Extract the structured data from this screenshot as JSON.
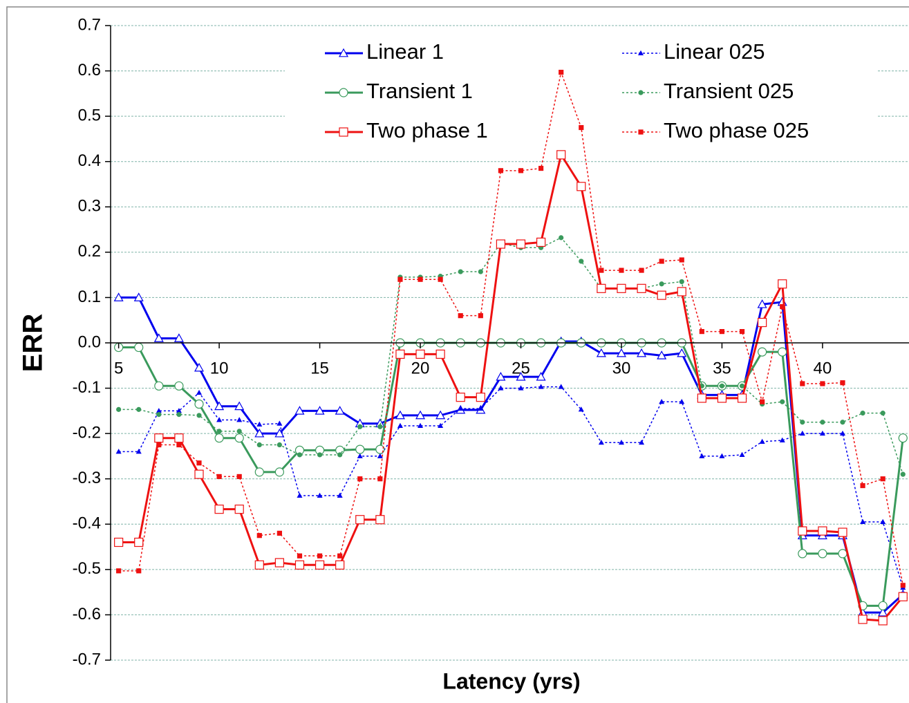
{
  "chart_data": {
    "type": "line",
    "ylabel": "ERR",
    "xlabel": "Latency (yrs)",
    "x": [
      5,
      6,
      7,
      8,
      9,
      10,
      11,
      12,
      13,
      14,
      15,
      16,
      17,
      18,
      19,
      20,
      21,
      22,
      23,
      24,
      25,
      26,
      27,
      28,
      29,
      30,
      31,
      32,
      33,
      34,
      35,
      36,
      37,
      38,
      39,
      40,
      41,
      42,
      43,
      44
    ],
    "xlim": [
      4.6,
      44.3
    ],
    "xticks": [
      5,
      10,
      15,
      20,
      25,
      30,
      35,
      40
    ],
    "ylim": [
      -0.7,
      0.7
    ],
    "yticks": [
      0.7,
      0.6,
      0.5,
      0.4,
      0.3,
      0.2,
      0.1,
      {
        "value": 0,
        "label": "0.0"
      },
      -0.1,
      -0.2,
      -0.3,
      -0.4,
      -0.5,
      -0.6,
      -0.7
    ],
    "grid": true,
    "series": [
      {
        "name": "Linear 1",
        "color": "#0000ee",
        "style": "solid",
        "marker": "triangle",
        "values": [
          0.1,
          0.1,
          0.01,
          0.01,
          -0.055,
          -0.14,
          -0.14,
          -0.2,
          -0.2,
          -0.15,
          -0.15,
          -0.15,
          -0.178,
          -0.178,
          -0.16,
          -0.16,
          -0.16,
          -0.148,
          -0.148,
          -0.075,
          -0.075,
          -0.075,
          0.003,
          0.003,
          -0.023,
          -0.023,
          -0.023,
          -0.028,
          -0.023,
          -0.115,
          -0.115,
          -0.115,
          0.085,
          0.09,
          -0.425,
          -0.425,
          -0.425,
          -0.595,
          -0.595,
          -0.555
        ]
      },
      {
        "name": "Linear 025",
        "color": "#0000ee",
        "style": "dotted",
        "marker": "triangle",
        "values": [
          -0.24,
          -0.24,
          -0.15,
          -0.15,
          -0.11,
          -0.17,
          -0.17,
          -0.18,
          -0.178,
          -0.337,
          -0.337,
          -0.337,
          -0.25,
          -0.25,
          -0.183,
          -0.183,
          -0.183,
          -0.145,
          -0.145,
          -0.1,
          -0.1,
          -0.097,
          -0.097,
          -0.147,
          -0.22,
          -0.22,
          -0.22,
          -0.13,
          -0.13,
          -0.25,
          -0.25,
          -0.247,
          -0.218,
          -0.215,
          -0.2,
          -0.2,
          -0.2,
          -0.395,
          -0.395,
          -0.54
        ]
      },
      {
        "name": "Transient 1",
        "color": "#3a9a5c",
        "style": "solid",
        "marker": "circle",
        "values": [
          -0.01,
          -0.01,
          -0.095,
          -0.095,
          -0.135,
          -0.21,
          -0.21,
          -0.285,
          -0.285,
          -0.237,
          -0.237,
          -0.237,
          -0.235,
          -0.235,
          0,
          0,
          0,
          0,
          0,
          0,
          0,
          0,
          0,
          0,
          0,
          0,
          0,
          0,
          0,
          -0.095,
          -0.095,
          -0.095,
          -0.02,
          -0.02,
          -0.465,
          -0.465,
          -0.465,
          -0.58,
          -0.58,
          -0.21
        ]
      },
      {
        "name": "Transient 025",
        "color": "#3a9a5c",
        "style": "dotted",
        "marker": "circle",
        "values": [
          -0.147,
          -0.147,
          -0.158,
          -0.158,
          -0.16,
          -0.195,
          -0.195,
          -0.225,
          -0.225,
          -0.247,
          -0.247,
          -0.247,
          -0.185,
          -0.185,
          0.145,
          0.145,
          0.147,
          0.157,
          0.157,
          0.22,
          0.21,
          0.21,
          0.232,
          0.18,
          0.12,
          0.12,
          0.12,
          0.13,
          0.135,
          -0.095,
          -0.095,
          -0.095,
          -0.135,
          -0.13,
          -0.175,
          -0.175,
          -0.175,
          -0.155,
          -0.155,
          -0.29
        ]
      },
      {
        "name": "Two phase 1",
        "color": "#ee1111",
        "style": "solid",
        "marker": "square",
        "values": [
          -0.44,
          -0.44,
          -0.21,
          -0.21,
          -0.29,
          -0.367,
          -0.367,
          -0.49,
          -0.485,
          -0.49,
          -0.49,
          -0.49,
          -0.39,
          -0.39,
          -0.025,
          -0.025,
          -0.025,
          -0.12,
          -0.12,
          0.218,
          0.218,
          0.222,
          0.415,
          0.345,
          0.12,
          0.12,
          0.12,
          0.105,
          0.113,
          -0.122,
          -0.122,
          -0.122,
          0.045,
          0.13,
          -0.415,
          -0.415,
          -0.418,
          -0.61,
          -0.613,
          -0.56
        ]
      },
      {
        "name": "Two phase 025",
        "color": "#ee1111",
        "style": "dotted",
        "marker": "square",
        "values": [
          -0.503,
          -0.503,
          -0.225,
          -0.225,
          -0.265,
          -0.295,
          -0.295,
          -0.425,
          -0.42,
          -0.47,
          -0.47,
          -0.47,
          -0.3,
          -0.3,
          0.14,
          0.14,
          0.14,
          0.06,
          0.06,
          0.38,
          0.38,
          0.385,
          0.597,
          0.475,
          0.16,
          0.16,
          0.16,
          0.18,
          0.183,
          0.025,
          0.025,
          0.025,
          -0.13,
          0.08,
          -0.09,
          -0.09,
          -0.088,
          -0.315,
          -0.3,
          -0.535
        ]
      }
    ]
  }
}
